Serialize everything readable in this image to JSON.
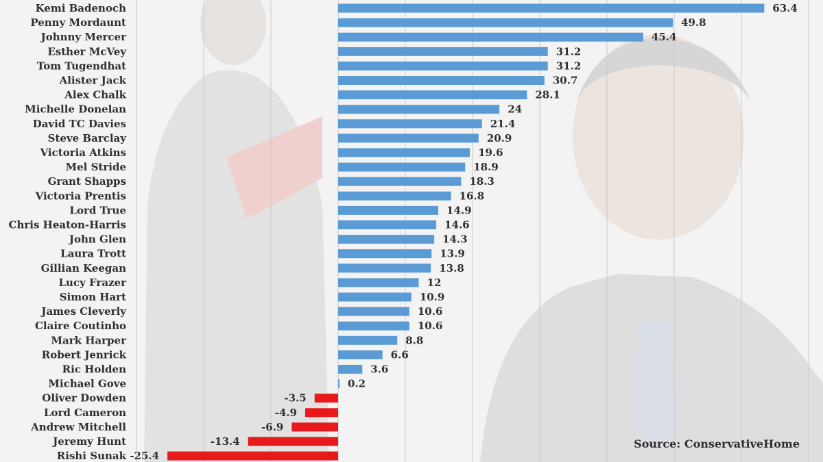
{
  "chart_data": {
    "type": "bar",
    "orientation": "horizontal",
    "categories": [
      "Kemi Badenoch",
      "Penny Mordaunt",
      "Johnny Mercer",
      "Esther McVey",
      "Tom Tugendhat",
      "Alister Jack",
      "Alex Chalk",
      "Michelle Donelan",
      "David TC Davies",
      "Steve Barclay",
      "Victoria Atkins",
      "Mel Stride",
      "Grant Shapps",
      "Victoria Prentis",
      "Lord True",
      "Chris Heaton-Harris",
      "John Glen",
      "Laura Trott",
      "Gillian Keegan",
      "Lucy Frazer",
      "Simon Hart",
      "James Cleverly",
      "Claire Coutinho",
      "Mark Harper",
      "Robert Jenrick",
      "Ric Holden",
      "Michael Gove",
      "Oliver Dowden",
      "Lord Cameron",
      "Andrew Mitchell",
      "Jeremy Hunt",
      "Rishi Sunak"
    ],
    "values": [
      63.4,
      49.8,
      45.4,
      31.2,
      31.2,
      30.7,
      28.1,
      24,
      21.4,
      20.9,
      19.6,
      18.9,
      18.3,
      16.8,
      14.9,
      14.6,
      14.3,
      13.9,
      13.8,
      12,
      10.9,
      10.6,
      10.6,
      8.8,
      6.6,
      3.6,
      0.2,
      -3.5,
      -4.9,
      -6.9,
      -13.4,
      -25.4
    ],
    "value_labels": [
      "63.4",
      "49.8",
      "45.4",
      "31.2",
      "31.2",
      "30.7",
      "28.1",
      "24",
      "21.4",
      "20.9",
      "19.6",
      "18.9",
      "18.3",
      "16.8",
      "14.9",
      "14.6",
      "14.3",
      "13.9",
      "13.8",
      "12",
      "10.9",
      "10.6",
      "10.6",
      "8.8",
      "6.6",
      "3.6",
      "0.2",
      "-3.5",
      "-4.9",
      "-6.9",
      "-13.4",
      "-25.4"
    ],
    "xlim": [
      -30,
      70
    ],
    "grid": true,
    "colors": {
      "positive": "#5b9bd5",
      "negative": "#e8191b"
    },
    "source": "Source: ConservativeHome"
  }
}
